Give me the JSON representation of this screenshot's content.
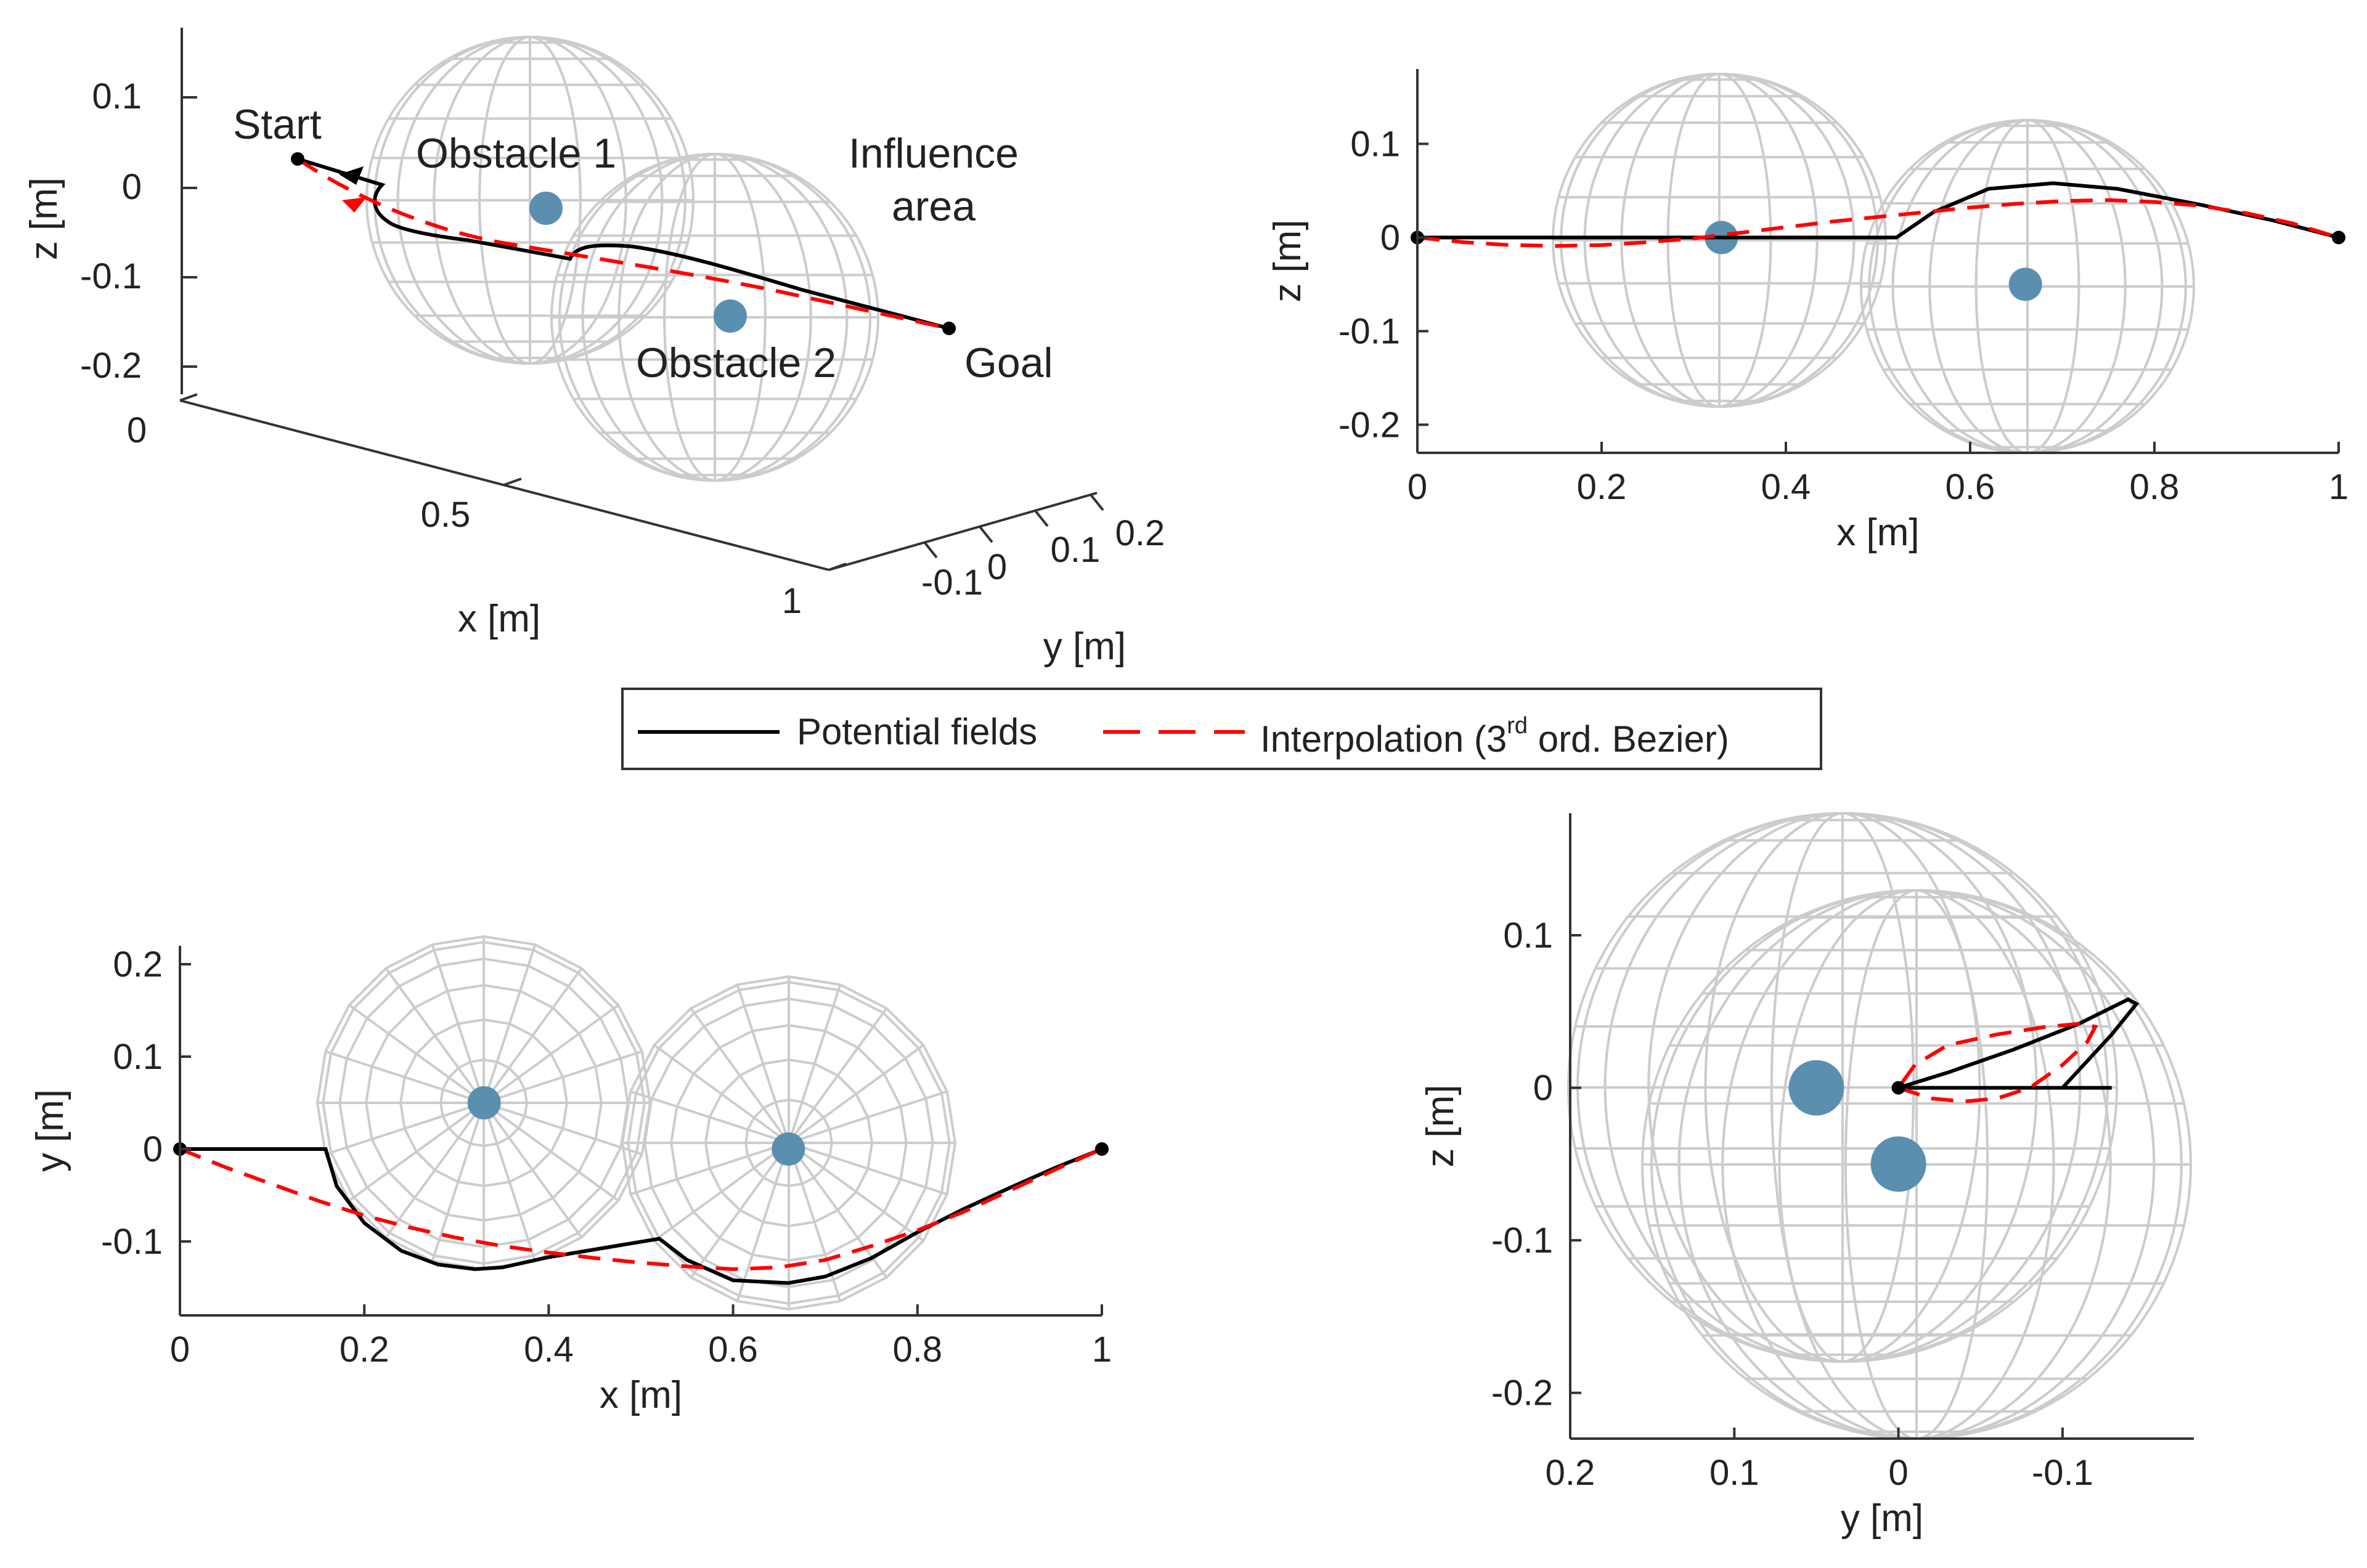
{
  "figure": {
    "subtitle_font_note": ""
  },
  "legend": {
    "pf_label": "Potential fields",
    "interp_pre": "Interpolation (3",
    "interp_sup": "rd",
    "interp_post": " ord. Bezier)"
  },
  "colors": {
    "potential": "#000000",
    "interp": "#ff0000",
    "sphere": "#cccccc",
    "obstacle": "#5b8fb0"
  },
  "chart_data": [
    {
      "type": "line",
      "view": "3d",
      "xlabel": "x [m]",
      "ylabel": "y [m]",
      "zlabel": "z [m]",
      "z_ticks": [
        "0.1",
        "0",
        "-0.1",
        "-0.2"
      ],
      "x_ticks": [
        "0",
        "0.5",
        "1"
      ],
      "y_ticks": [
        "-0.1",
        "0",
        "0.1",
        "0.2"
      ],
      "annotations": {
        "start": "Start",
        "goal": "Goal",
        "obstacle1": "Obstacle 1",
        "obstacle2": "Obstacle 2",
        "influence": "Influence",
        "area": "area"
      },
      "obstacles": [
        {
          "x": 0.33,
          "y": 0,
          "z": 0
        },
        {
          "x": 0.66,
          "y": -0.05,
          "z": -0.05
        }
      ]
    },
    {
      "type": "line",
      "view": "xz",
      "xlabel": "x [m]",
      "ylabel": "z [m]",
      "xlim": [
        0,
        1
      ],
      "ylim": [
        -0.23,
        0.18
      ],
      "x_ticks": [
        "0",
        "0.2",
        "0.4",
        "0.6",
        "0.8",
        "1"
      ],
      "y_ticks": [
        "0.1",
        "0",
        "-0.1",
        "-0.2"
      ],
      "obstacles": [
        {
          "x": 0.33,
          "y": 0
        },
        {
          "x": 0.66,
          "y": -0.05
        }
      ],
      "series": [
        {
          "name": "Potential fields",
          "x": [
            0,
            0.15,
            0.3,
            0.45,
            0.52,
            0.56,
            0.62,
            0.69,
            0.76,
            0.85,
            0.93,
            1
          ],
          "y": [
            0,
            0,
            0,
            0,
            0,
            0.027,
            0.052,
            0.058,
            0.052,
            0.035,
            0.018,
            0
          ]
        },
        {
          "name": "Interpolation (3rd ord. Bezier)",
          "x": [
            0,
            0.05,
            0.1,
            0.15,
            0.2,
            0.25,
            0.3,
            0.35,
            0.4,
            0.45,
            0.5,
            0.55,
            0.6,
            0.65,
            0.7,
            0.75,
            0.8,
            0.85,
            0.9,
            0.95,
            1
          ],
          "y": [
            0,
            -0.005,
            -0.008,
            -0.009,
            -0.008,
            -0.005,
            -0.001,
            0.005,
            0.011,
            0.017,
            0.022,
            0.027,
            0.032,
            0.036,
            0.039,
            0.04,
            0.038,
            0.034,
            0.026,
            0.015,
            0
          ]
        }
      ]
    },
    {
      "type": "line",
      "view": "xy",
      "xlabel": "x [m]",
      "ylabel": "y [m]",
      "xlim": [
        0,
        1
      ],
      "ylim": [
        -0.18,
        0.22
      ],
      "x_ticks": [
        "0",
        "0.2",
        "0.4",
        "0.6",
        "0.8",
        "1"
      ],
      "y_ticks": [
        "0.2",
        "0.1",
        "0",
        "-0.1"
      ],
      "obstacles": [
        {
          "x": 0.33,
          "y": 0.05
        },
        {
          "x": 0.66,
          "y": 0
        }
      ],
      "series": [
        {
          "name": "Potential fields",
          "x": [
            0,
            0.08,
            0.158,
            0.17,
            0.2,
            0.24,
            0.28,
            0.32,
            0.35,
            0.4,
            0.46,
            0.52,
            0.55,
            0.6,
            0.66,
            0.7,
            0.75,
            0.8,
            0.85,
            0.9,
            0.95,
            1
          ],
          "y": [
            0,
            0,
            0,
            -0.04,
            -0.08,
            -0.11,
            -0.125,
            -0.13,
            -0.128,
            -0.117,
            -0.107,
            -0.097,
            -0.12,
            -0.142,
            -0.145,
            -0.138,
            -0.118,
            -0.09,
            -0.065,
            -0.042,
            -0.02,
            0
          ]
        },
        {
          "name": "Interpolation (3rd ord. Bezier)",
          "x": [
            0,
            0.05,
            0.1,
            0.15,
            0.2,
            0.25,
            0.3,
            0.35,
            0.4,
            0.45,
            0.5,
            0.55,
            0.6,
            0.65,
            0.7,
            0.75,
            0.8,
            0.85,
            0.9,
            0.95,
            1
          ],
          "y": [
            0,
            -0.02,
            -0.038,
            -0.056,
            -0.072,
            -0.085,
            -0.096,
            -0.105,
            -0.112,
            -0.118,
            -0.123,
            -0.127,
            -0.13,
            -0.128,
            -0.12,
            -0.105,
            -0.088,
            -0.068,
            -0.045,
            -0.022,
            0
          ]
        }
      ]
    },
    {
      "type": "line",
      "view": "yz",
      "xlabel": "y [m]",
      "ylabel": "z [m]",
      "xlim": [
        0.2,
        -0.18
      ],
      "ylim": [
        -0.23,
        0.18
      ],
      "x_ticks": [
        "0.2",
        "0.1",
        "0",
        "-0.1"
      ],
      "y_ticks": [
        "0.1",
        "0",
        "-0.1",
        "-0.2"
      ],
      "obstacles": [
        {
          "x": 0.05,
          "y": 0
        },
        {
          "x": 0,
          "y": -0.05
        }
      ],
      "series": [
        {
          "name": "Potential fields",
          "x": [
            0,
            -0.03,
            -0.07,
            -0.11,
            -0.14,
            -0.145,
            -0.13,
            -0.1,
            -0.09,
            -0.07,
            -0.03,
            0,
            -0.05,
            -0.13
          ],
          "y": [
            0,
            0.01,
            0.025,
            0.042,
            0.058,
            0.055,
            0.035,
            0.0,
            0.0,
            0.0,
            0.0,
            0.0,
            0.0,
            0.0
          ]
        },
        {
          "name": "Interpolation (3rd ord. Bezier)",
          "x": [
            0,
            -0.02,
            -0.04,
            -0.06,
            -0.08,
            -0.1,
            -0.115,
            -0.12,
            -0.11,
            -0.09,
            -0.06,
            -0.03,
            -0.01,
            0
          ],
          "y": [
            0,
            -0.007,
            -0.009,
            -0.007,
            0.0,
            0.015,
            0.03,
            0.04,
            0.042,
            0.04,
            0.035,
            0.028,
            0.015,
            0
          ]
        }
      ]
    }
  ]
}
